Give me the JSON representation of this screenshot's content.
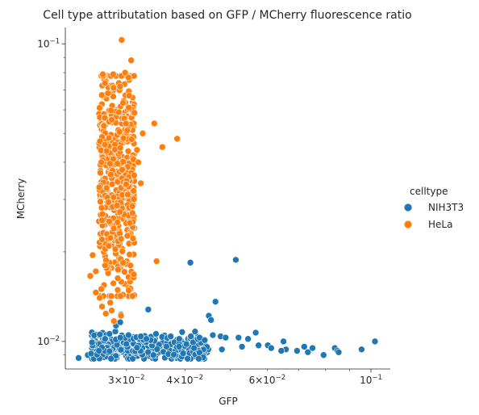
{
  "chart_data": {
    "type": "scatter",
    "title": "Cell type attributation based on GFP / MCherry fluorescence ratio",
    "xlabel": "GFP",
    "ylabel": "MCherry",
    "xscale": "log",
    "yscale": "log",
    "xlim": [
      0.0222,
      0.11
    ],
    "ylim": [
      0.00808,
      0.1135
    ],
    "x_ticks": [
      {
        "value": 0.03,
        "base": "3×10",
        "exp": "−2"
      },
      {
        "value": 0.04,
        "base": "4×10",
        "exp": "−2"
      },
      {
        "value": 0.06,
        "base": "6×10",
        "exp": "−2"
      },
      {
        "value": 0.1,
        "base": "10",
        "exp": "−1"
      }
    ],
    "x_minor_ticks": [
      0.03,
      0.04,
      0.05,
      0.06,
      0.07,
      0.08,
      0.09
    ],
    "y_ticks": [
      {
        "value": 0.01,
        "base": "10",
        "exp": "−2"
      },
      {
        "value": 0.1,
        "base": "10",
        "exp": "−1"
      }
    ],
    "y_minor_ticks": [
      0.009,
      0.02,
      0.03,
      0.04,
      0.05,
      0.06,
      0.07,
      0.08,
      0.09
    ],
    "legend": {
      "title": "celltype",
      "position": "right",
      "entries": [
        {
          "name": "NIH3T3",
          "color": "#1f77b4"
        },
        {
          "name": "HeLa",
          "color": "#ff7f0e"
        }
      ]
    },
    "series": [
      {
        "name": "NIH3T3",
        "color": "#1f77b4",
        "cluster": {
          "n": 420,
          "x_range": [
            0.0253,
            0.045
          ],
          "y_center": 0.0095,
          "y_spread": 0.00045
        },
        "points": [
          [
            0.0237,
            0.0088
          ],
          [
            0.0248,
            0.009
          ],
          [
            0.0252,
            0.0091
          ],
          [
            0.0262,
            0.0093
          ],
          [
            0.027,
            0.0102
          ],
          [
            0.0276,
            0.0106
          ],
          [
            0.0284,
            0.0108
          ],
          [
            0.0291,
            0.0103
          ],
          [
            0.0303,
            0.0105
          ],
          [
            0.0322,
            0.0104
          ],
          [
            0.0331,
            0.0102
          ],
          [
            0.0347,
            0.0106
          ],
          [
            0.0285,
            0.0113
          ],
          [
            0.0291,
            0.0116
          ],
          [
            0.0292,
            0.0123
          ],
          [
            0.0334,
            0.0128
          ],
          [
            0.0373,
            0.0104
          ],
          [
            0.0389,
            0.0102
          ],
          [
            0.0403,
            0.0098
          ],
          [
            0.0412,
            0.0104
          ],
          [
            0.043,
            0.0103
          ],
          [
            0.0441,
            0.0101
          ],
          [
            0.045,
            0.0122
          ],
          [
            0.0455,
            0.0118
          ],
          [
            0.0459,
            0.0105
          ],
          [
            0.0465,
            0.0136
          ],
          [
            0.0477,
            0.0104
          ],
          [
            0.0489,
            0.0103
          ],
          [
            0.0521,
            0.0103
          ],
          [
            0.0546,
            0.0102
          ],
          [
            0.0567,
            0.0107
          ],
          [
            0.0575,
            0.0097
          ],
          [
            0.0602,
            0.0097
          ],
          [
            0.065,
            0.01
          ],
          [
            0.0658,
            0.0094
          ],
          [
            0.0695,
            0.0093
          ],
          [
            0.072,
            0.0096
          ],
          [
            0.0733,
            0.0092
          ],
          [
            0.075,
            0.0095
          ],
          [
            0.0792,
            0.009
          ],
          [
            0.0837,
            0.0095
          ],
          [
            0.0848,
            0.0093
          ],
          [
            0.0853,
            0.0092
          ],
          [
            0.0955,
            0.0094
          ],
          [
            0.102,
            0.01
          ],
          [
            0.0411,
            0.0184
          ],
          [
            0.0514,
            0.0188
          ],
          [
            0.048,
            0.0094
          ],
          [
            0.053,
            0.0096
          ],
          [
            0.0612,
            0.0095
          ],
          [
            0.0643,
            0.0093
          ]
        ]
      },
      {
        "name": "HeLa",
        "color": "#ff7f0e",
        "cluster": {
          "n": 520,
          "x_range": [
            0.0262,
            0.0312
          ],
          "y_log_range": [
            0.0142,
            0.078
          ]
        },
        "points": [
          [
            0.0293,
            0.103
          ],
          [
            0.0307,
            0.088
          ],
          [
            0.0298,
            0.08
          ],
          [
            0.0267,
            0.079
          ],
          [
            0.0281,
            0.079
          ],
          [
            0.0303,
            0.077
          ],
          [
            0.0309,
            0.066
          ],
          [
            0.0304,
            0.067
          ],
          [
            0.0344,
            0.054
          ],
          [
            0.0325,
            0.05
          ],
          [
            0.0358,
            0.045
          ],
          [
            0.0385,
            0.048
          ],
          [
            0.0316,
            0.044
          ],
          [
            0.0318,
            0.04
          ],
          [
            0.0322,
            0.034
          ],
          [
            0.0305,
            0.025
          ],
          [
            0.0309,
            0.027
          ],
          [
            0.0348,
            0.0186
          ],
          [
            0.0306,
            0.018
          ],
          [
            0.0311,
            0.0168
          ],
          [
            0.0254,
            0.0195
          ],
          [
            0.0251,
            0.0166
          ],
          [
            0.0258,
            0.0146
          ],
          [
            0.0263,
            0.014
          ],
          [
            0.0266,
            0.0131
          ],
          [
            0.0271,
            0.0124
          ],
          [
            0.0282,
            0.0117
          ],
          [
            0.0292,
            0.0122
          ],
          [
            0.0265,
            0.015
          ],
          [
            0.0277,
            0.0135
          ],
          [
            0.0258,
            0.0172
          ],
          [
            0.0279,
            0.0127
          ],
          [
            0.027,
            0.018
          ]
        ]
      }
    ]
  }
}
